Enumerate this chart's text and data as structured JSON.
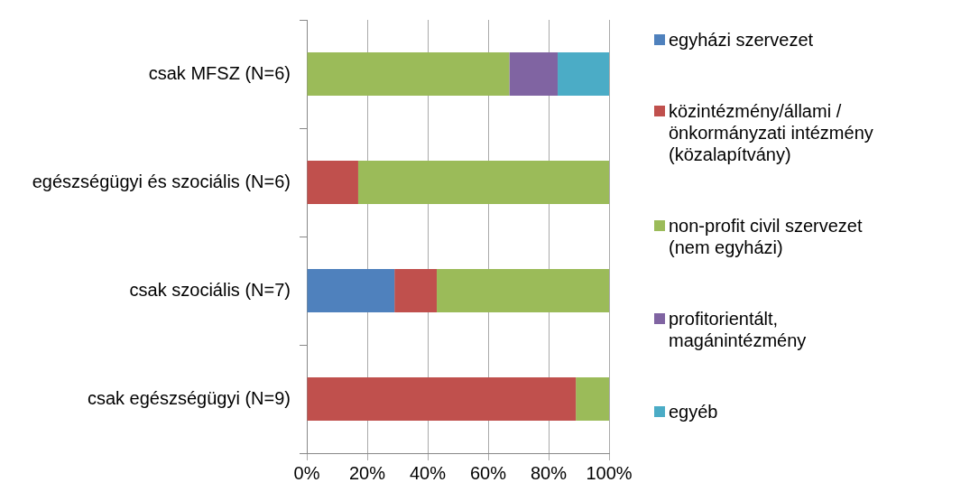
{
  "chart_data": {
    "type": "bar",
    "orientation": "horizontal",
    "stacked": true,
    "categories": [
      "csak MFSZ (N=6)",
      "egészségügyi és szociális (N=6)",
      "csak szociális (N=7)",
      "csak egészségügyi (N=9)"
    ],
    "series": [
      {
        "name": "egyházi szervezet",
        "color": "#4f81bd",
        "values": [
          0,
          0,
          29,
          0
        ]
      },
      {
        "name": "közintézmény/állami /önkormányzati intézmény (közalapítvány)",
        "color": "#c0504d",
        "values": [
          0,
          17,
          14,
          89
        ]
      },
      {
        "name": "non-profit civil szervezet (nem egyházi)",
        "color": "#9bbb59",
        "values": [
          67,
          83,
          57,
          11
        ]
      },
      {
        "name": "profitorientált, magánintézmény",
        "color": "#8064a2",
        "values": [
          16,
          0,
          0,
          0
        ]
      },
      {
        "name": "egyéb",
        "color": "#4bacc6",
        "values": [
          17,
          0,
          0,
          0
        ]
      }
    ],
    "xlim": [
      0,
      100
    ],
    "xticks": [
      {
        "value": 0,
        "label": "0%"
      },
      {
        "value": 20,
        "label": "20%"
      },
      {
        "value": 40,
        "label": "40%"
      },
      {
        "value": 60,
        "label": "60%"
      },
      {
        "value": 80,
        "label": "80%"
      },
      {
        "value": 100,
        "label": "100%"
      }
    ],
    "grid": "x",
    "legend": "right"
  }
}
